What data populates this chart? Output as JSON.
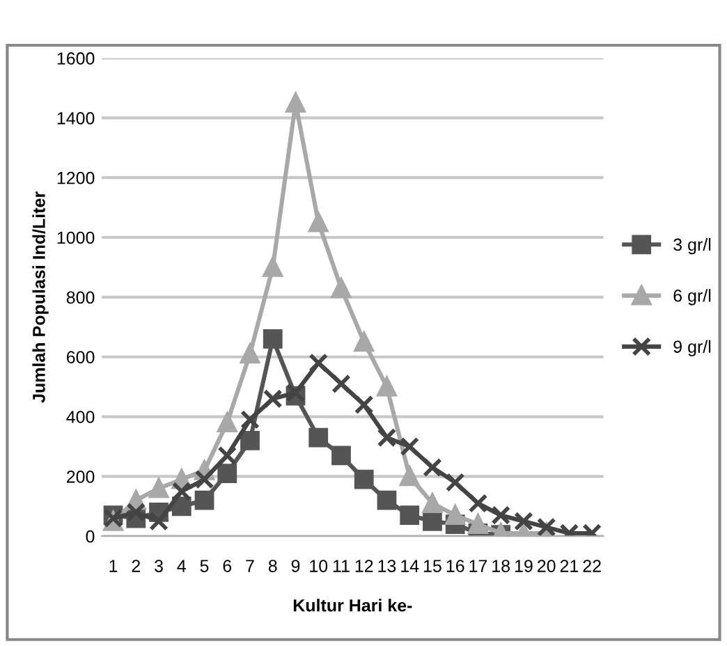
{
  "chart_data": {
    "type": "line",
    "xlabel": "Kultur Hari ke-",
    "ylabel": "Jumlah Populasi Ind/Liter",
    "categories": [
      "1",
      "2",
      "3",
      "4",
      "5",
      "6",
      "7",
      "8",
      "9",
      "10",
      "11",
      "12",
      "13",
      "14",
      "15",
      "16",
      "17",
      "18",
      "19",
      "20",
      "21",
      "22"
    ],
    "ylim": [
      0,
      1600
    ],
    "yticks": [
      0,
      200,
      400,
      600,
      800,
      1000,
      1200,
      1400,
      1600
    ],
    "grid": "y",
    "legend": "right",
    "series": [
      {
        "name": "3 gr/l",
        "color": "#555555",
        "marker": "square",
        "values": [
          70,
          60,
          80,
          100,
          120,
          210,
          320,
          660,
          470,
          330,
          270,
          190,
          120,
          70,
          50,
          40,
          10,
          5,
          null,
          null,
          null,
          null
        ]
      },
      {
        "name": "6 gr/l",
        "color": "#a8a8a8",
        "marker": "triangle",
        "values": [
          50,
          120,
          160,
          190,
          220,
          380,
          610,
          900,
          1450,
          1050,
          830,
          650,
          500,
          200,
          110,
          70,
          40,
          10,
          10,
          10,
          null,
          null
        ]
      },
      {
        "name": "9 gr/l",
        "color": "#444444",
        "marker": "cross",
        "values": [
          60,
          80,
          50,
          150,
          190,
          270,
          390,
          460,
          480,
          580,
          510,
          440,
          330,
          300,
          230,
          180,
          110,
          70,
          50,
          30,
          10,
          10
        ]
      }
    ]
  }
}
